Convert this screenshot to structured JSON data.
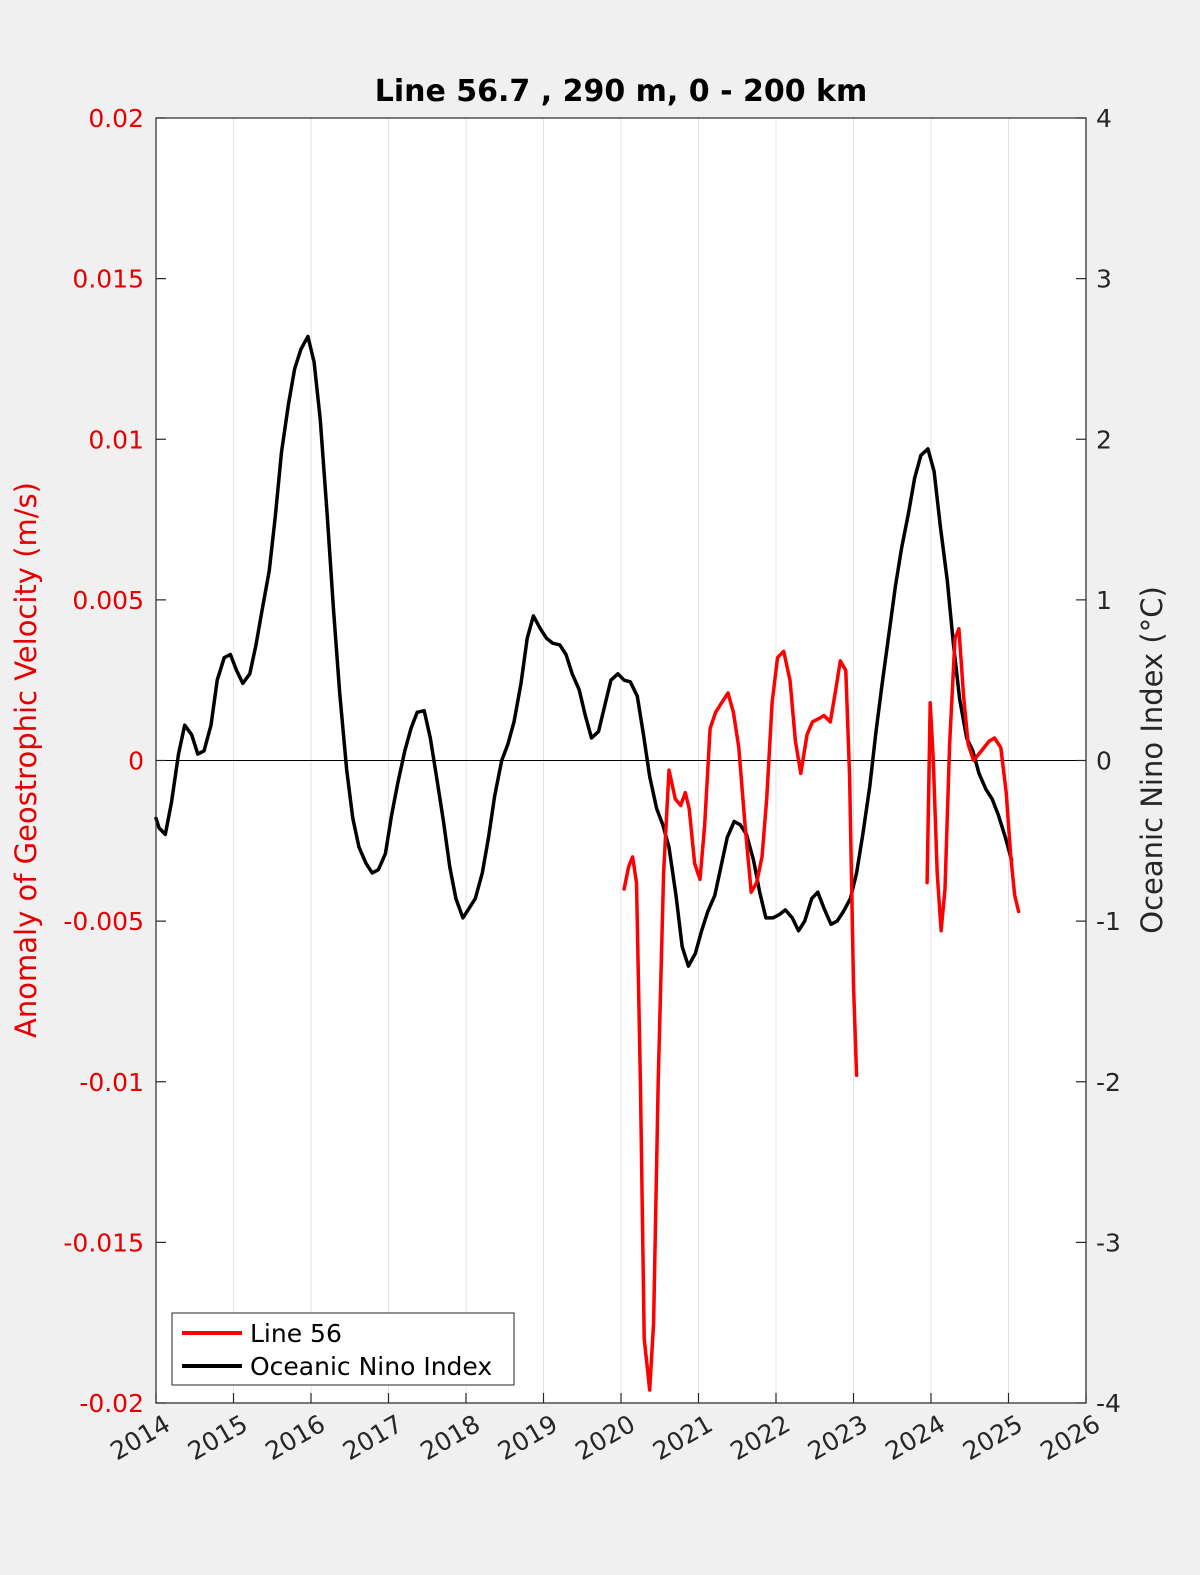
{
  "chart_data": {
    "type": "line",
    "title": "Line 56.7 , 290 m, 0 - 200 km",
    "xlabel": "",
    "ylabel_left": "Anomaly of Geostrophic Velocity (m/s)",
    "ylabel_right": "Oceanic Nino Index (°C)",
    "xlim": [
      2014,
      2026
    ],
    "ylim_left": [
      -0.02,
      0.02
    ],
    "ylim_right": [
      -4,
      4
    ],
    "x_ticks": [
      "2014",
      "2015",
      "2016",
      "2017",
      "2018",
      "2019",
      "2020",
      "2021",
      "2022",
      "2023",
      "2024",
      "2025",
      "2026"
    ],
    "y_ticks_left": [
      "-0.02",
      "-0.015",
      "-0.01",
      "-0.005",
      "0",
      "0.005",
      "0.01",
      "0.015",
      "0.02"
    ],
    "y_ticks_right": [
      "-4",
      "-3",
      "-2",
      "-1",
      "0",
      "1",
      "2",
      "3",
      "4"
    ],
    "grid": "vertical",
    "legend_position": "bottom-left",
    "colors": {
      "line56": "#ff0000",
      "oni": "#000000",
      "left_axis": "#e60000"
    },
    "series": [
      {
        "name": "Line 56",
        "axis": "left",
        "segments": [
          [
            [
              2020.04,
              -0.004
            ],
            [
              2020.1,
              -0.0033
            ],
            [
              2020.15,
              -0.003
            ],
            [
              2020.2,
              -0.0038
            ],
            [
              2020.25,
              -0.01
            ],
            [
              2020.3,
              -0.018
            ],
            [
              2020.37,
              -0.0196
            ],
            [
              2020.42,
              -0.0175
            ],
            [
              2020.48,
              -0.01
            ],
            [
              2020.55,
              -0.0035
            ],
            [
              2020.62,
              -0.0003
            ],
            [
              2020.7,
              -0.0012
            ],
            [
              2020.77,
              -0.0014
            ],
            [
              2020.83,
              -0.001
            ],
            [
              2020.88,
              -0.0015
            ],
            [
              2020.95,
              -0.0032
            ],
            [
              2021.02,
              -0.0037
            ],
            [
              2021.08,
              -0.002
            ],
            [
              2021.15,
              0.001
            ],
            [
              2021.22,
              0.0015
            ],
            [
              2021.3,
              0.0018
            ],
            [
              2021.38,
              0.0021
            ],
            [
              2021.45,
              0.0015
            ],
            [
              2021.52,
              0.0004
            ],
            [
              2021.6,
              -0.002
            ],
            [
              2021.68,
              -0.0041
            ],
            [
              2021.75,
              -0.0038
            ],
            [
              2021.82,
              -0.003
            ],
            [
              2021.88,
              -0.0012
            ],
            [
              2021.95,
              0.0018
            ],
            [
              2022.02,
              0.0032
            ],
            [
              2022.1,
              0.0034
            ],
            [
              2022.18,
              0.0025
            ],
            [
              2022.25,
              0.0006
            ],
            [
              2022.32,
              -0.0004
            ],
            [
              2022.4,
              0.0008
            ],
            [
              2022.47,
              0.0012
            ],
            [
              2022.55,
              0.0013
            ],
            [
              2022.62,
              0.0014
            ],
            [
              2022.7,
              0.0012
            ],
            [
              2022.77,
              0.0022
            ],
            [
              2022.83,
              0.0031
            ],
            [
              2022.9,
              0.0028
            ],
            [
              2022.95,
              -0.0005
            ],
            [
              2023.0,
              -0.007
            ],
            [
              2023.04,
              -0.0098
            ]
          ],
          [
            [
              2023.95,
              -0.0038
            ],
            [
              2023.99,
              0.0018
            ],
            [
              2024.03,
              0.0
            ],
            [
              2024.08,
              -0.0035
            ],
            [
              2024.13,
              -0.0053
            ],
            [
              2024.18,
              -0.004
            ],
            [
              2024.24,
              0.0005
            ],
            [
              2024.31,
              0.0038
            ],
            [
              2024.36,
              0.0041
            ],
            [
              2024.42,
              0.002
            ],
            [
              2024.48,
              0.0005
            ],
            [
              2024.55,
              0.0
            ],
            [
              2024.65,
              0.0003
            ],
            [
              2024.75,
              0.0006
            ],
            [
              2024.82,
              0.0007
            ],
            [
              2024.9,
              0.0004
            ],
            [
              2024.97,
              -0.001
            ],
            [
              2025.03,
              -0.003
            ],
            [
              2025.08,
              -0.0042
            ],
            [
              2025.13,
              -0.0047
            ]
          ]
        ]
      },
      {
        "name": "Oceanic Nino Index",
        "axis": "right",
        "segments": [
          [
            [
              2014.0,
              -0.36
            ],
            [
              2014.04,
              -0.42
            ],
            [
              2014.12,
              -0.46
            ],
            [
              2014.2,
              -0.26
            ],
            [
              2014.29,
              0.04
            ],
            [
              2014.37,
              0.22
            ],
            [
              2014.46,
              0.16
            ],
            [
              2014.54,
              0.04
            ],
            [
              2014.62,
              0.06
            ],
            [
              2014.71,
              0.22
            ],
            [
              2014.79,
              0.5
            ],
            [
              2014.88,
              0.64
            ],
            [
              2014.96,
              0.66
            ],
            [
              2015.04,
              0.56
            ],
            [
              2015.12,
              0.48
            ],
            [
              2015.21,
              0.54
            ],
            [
              2015.29,
              0.72
            ],
            [
              2015.37,
              0.94
            ],
            [
              2015.46,
              1.18
            ],
            [
              2015.54,
              1.52
            ],
            [
              2015.62,
              1.92
            ],
            [
              2015.71,
              2.22
            ],
            [
              2015.79,
              2.44
            ],
            [
              2015.87,
              2.56
            ],
            [
              2015.96,
              2.64
            ],
            [
              2016.04,
              2.48
            ],
            [
              2016.12,
              2.12
            ],
            [
              2016.21,
              1.52
            ],
            [
              2016.29,
              0.94
            ],
            [
              2016.37,
              0.42
            ],
            [
              2016.46,
              -0.06
            ],
            [
              2016.54,
              -0.36
            ],
            [
              2016.62,
              -0.54
            ],
            [
              2016.71,
              -0.64
            ],
            [
              2016.79,
              -0.7
            ],
            [
              2016.87,
              -0.68
            ],
            [
              2016.96,
              -0.58
            ],
            [
              2017.04,
              -0.34
            ],
            [
              2017.12,
              -0.14
            ],
            [
              2017.21,
              0.06
            ],
            [
              2017.29,
              0.2
            ],
            [
              2017.37,
              0.3
            ],
            [
              2017.46,
              0.31
            ],
            [
              2017.54,
              0.14
            ],
            [
              2017.62,
              -0.1
            ],
            [
              2017.71,
              -0.38
            ],
            [
              2017.79,
              -0.66
            ],
            [
              2017.87,
              -0.86
            ],
            [
              2017.96,
              -0.98
            ],
            [
              2018.04,
              -0.92
            ],
            [
              2018.12,
              -0.86
            ],
            [
              2018.21,
              -0.7
            ],
            [
              2018.29,
              -0.48
            ],
            [
              2018.37,
              -0.22
            ],
            [
              2018.46,
              0.0
            ],
            [
              2018.54,
              0.1
            ],
            [
              2018.62,
              0.24
            ],
            [
              2018.71,
              0.48
            ],
            [
              2018.79,
              0.76
            ],
            [
              2018.87,
              0.9
            ],
            [
              2018.96,
              0.82
            ],
            [
              2019.04,
              0.76
            ],
            [
              2019.12,
              0.73
            ],
            [
              2019.21,
              0.72
            ],
            [
              2019.29,
              0.66
            ],
            [
              2019.37,
              0.54
            ],
            [
              2019.46,
              0.44
            ],
            [
              2019.54,
              0.28
            ],
            [
              2019.62,
              0.14
            ],
            [
              2019.71,
              0.18
            ],
            [
              2019.79,
              0.34
            ],
            [
              2019.87,
              0.5
            ],
            [
              2019.96,
              0.54
            ],
            [
              2020.04,
              0.5
            ],
            [
              2020.12,
              0.49
            ],
            [
              2020.21,
              0.4
            ],
            [
              2020.29,
              0.16
            ],
            [
              2020.37,
              -0.1
            ],
            [
              2020.46,
              -0.3
            ],
            [
              2020.54,
              -0.4
            ],
            [
              2020.62,
              -0.54
            ],
            [
              2020.71,
              -0.84
            ],
            [
              2020.79,
              -1.16
            ],
            [
              2020.87,
              -1.28
            ],
            [
              2020.96,
              -1.2
            ],
            [
              2021.04,
              -1.06
            ],
            [
              2021.12,
              -0.94
            ],
            [
              2021.21,
              -0.84
            ],
            [
              2021.29,
              -0.66
            ],
            [
              2021.37,
              -0.48
            ],
            [
              2021.46,
              -0.38
            ],
            [
              2021.54,
              -0.4
            ],
            [
              2021.62,
              -0.46
            ],
            [
              2021.71,
              -0.62
            ],
            [
              2021.79,
              -0.82
            ],
            [
              2021.87,
              -0.98
            ],
            [
              2021.96,
              -0.98
            ],
            [
              2022.04,
              -0.96
            ],
            [
              2022.12,
              -0.93
            ],
            [
              2022.21,
              -0.98
            ],
            [
              2022.29,
              -1.06
            ],
            [
              2022.37,
              -1.0
            ],
            [
              2022.46,
              -0.86
            ],
            [
              2022.54,
              -0.82
            ],
            [
              2022.62,
              -0.92
            ],
            [
              2022.71,
              -1.02
            ],
            [
              2022.79,
              -1.0
            ],
            [
              2022.87,
              -0.94
            ],
            [
              2022.96,
              -0.86
            ],
            [
              2023.04,
              -0.7
            ],
            [
              2023.12,
              -0.46
            ],
            [
              2023.21,
              -0.16
            ],
            [
              2023.29,
              0.18
            ],
            [
              2023.37,
              0.48
            ],
            [
              2023.46,
              0.8
            ],
            [
              2023.54,
              1.08
            ],
            [
              2023.62,
              1.32
            ],
            [
              2023.71,
              1.54
            ],
            [
              2023.79,
              1.76
            ],
            [
              2023.87,
              1.9
            ],
            [
              2023.96,
              1.94
            ],
            [
              2024.04,
              1.8
            ],
            [
              2024.12,
              1.46
            ],
            [
              2024.21,
              1.12
            ],
            [
              2024.29,
              0.72
            ],
            [
              2024.37,
              0.38
            ],
            [
              2024.46,
              0.14
            ],
            [
              2024.54,
              0.06
            ],
            [
              2024.62,
              -0.08
            ],
            [
              2024.71,
              -0.18
            ],
            [
              2024.79,
              -0.24
            ],
            [
              2024.87,
              -0.34
            ],
            [
              2024.96,
              -0.48
            ],
            [
              2025.04,
              -0.62
            ]
          ]
        ]
      }
    ]
  },
  "legend": {
    "items": [
      {
        "label": "Line 56",
        "color": "#ff0000"
      },
      {
        "label": "Oceanic Nino Index",
        "color": "#000000"
      }
    ]
  }
}
